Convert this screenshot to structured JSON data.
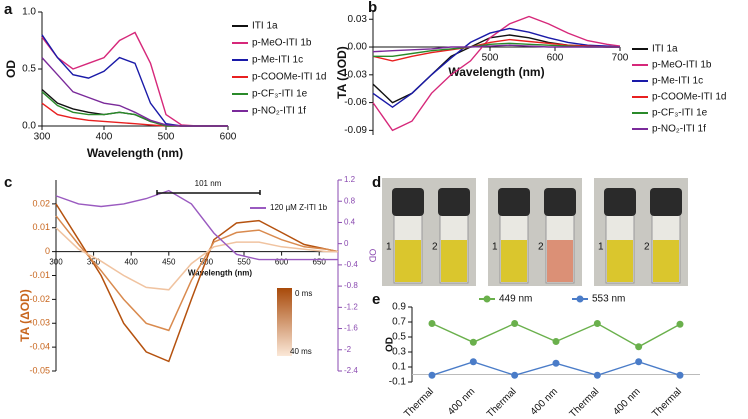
{
  "panel_labels": [
    "a",
    "b",
    "c",
    "d",
    "e"
  ],
  "photos": [
    {
      "labels": [
        "1",
        "2"
      ],
      "liquid": [
        "#d8c21a",
        "#d8c21a"
      ]
    },
    {
      "labels": [
        "1",
        "2"
      ],
      "liquid": [
        "#d8c21a",
        "#d9866a"
      ]
    },
    {
      "labels": [
        "1",
        "2"
      ],
      "liquid": [
        "#d8c21a",
        "#d8c21a"
      ]
    }
  ],
  "chart_data": [
    {
      "type": "line",
      "x": [
        300,
        325,
        350,
        375,
        400,
        425,
        450,
        475,
        500,
        525,
        550,
        575,
        600
      ],
      "xlim": [
        300,
        600
      ],
      "xticks": [
        300,
        400,
        500,
        600
      ],
      "ylim": [
        0,
        1
      ],
      "yticks": [
        {
          "value": 0,
          "label": "0.0"
        },
        0.5,
        {
          "value": 1,
          "label": "1.0"
        }
      ],
      "xlabel": "Wavelength (nm)",
      "ylabel": "OD",
      "series": [
        {
          "name": "ITI 1a",
          "color": "#111111",
          "values": [
            0.32,
            0.2,
            0.15,
            0.12,
            0.1,
            0.12,
            0.1,
            0.04,
            0.01,
            0,
            0,
            0,
            0
          ]
        },
        {
          "name": "p-MeO-ITI 1b",
          "color": "#d6287a",
          "values": [
            0.78,
            0.6,
            0.5,
            0.55,
            0.6,
            0.75,
            0.82,
            0.55,
            0.1,
            0.01,
            0,
            0,
            0
          ]
        },
        {
          "name": "p-Me-ITI 1c",
          "color": "#1a1aa8",
          "values": [
            0.8,
            0.6,
            0.45,
            0.42,
            0.48,
            0.6,
            0.55,
            0.2,
            0.02,
            0,
            0,
            0,
            0
          ]
        },
        {
          "name": "p-COOMe-ITI 1d",
          "color": "#e82020",
          "values": [
            0.2,
            0.1,
            0.07,
            0.05,
            0.04,
            0.03,
            0.02,
            0.01,
            0,
            0,
            0,
            0,
            0
          ]
        },
        {
          "name": "p-CF₃-ITI 1e",
          "color": "#2a8a2a",
          "values": [
            0.3,
            0.18,
            0.12,
            0.1,
            0.1,
            0.12,
            0.1,
            0.04,
            0,
            0,
            0,
            0,
            0
          ]
        },
        {
          "name": "p-NO₂-ITI 1f",
          "color": "#7a2a9a",
          "values": [
            0.6,
            0.45,
            0.3,
            0.25,
            0.2,
            0.18,
            0.12,
            0.05,
            0.01,
            0,
            0,
            0,
            0
          ]
        }
      ]
    },
    {
      "type": "line",
      "x": [
        320,
        350,
        380,
        410,
        440,
        470,
        500,
        530,
        560,
        590,
        620,
        650,
        680,
        700
      ],
      "xlim": [
        320,
        700
      ],
      "xticks": [
        500,
        600,
        700
      ],
      "ylim": [
        -0.095,
        0.04
      ],
      "yticks": [
        0.03,
        {
          "value": 0,
          "label": "0.00"
        },
        -0.03,
        -0.06,
        -0.09
      ],
      "xlabel": "Wavelength (nm)",
      "ylabel": "TA (ΔOD)",
      "series": [
        {
          "name": "ITI 1a",
          "color": "#111111",
          "values": [
            -0.04,
            -0.06,
            -0.05,
            -0.03,
            -0.01,
            0,
            0.01,
            0.013,
            0.01,
            0.005,
            0.002,
            0.001,
            0,
            0
          ]
        },
        {
          "name": "p-MeO-ITI 1b",
          "color": "#d6287a",
          "values": [
            -0.06,
            -0.09,
            -0.08,
            -0.05,
            -0.03,
            -0.015,
            0.01,
            0.025,
            0.033,
            0.025,
            0.015,
            0.007,
            0.003,
            0.001
          ]
        },
        {
          "name": "p-Me-ITI 1c",
          "color": "#1a1aa8",
          "values": [
            -0.05,
            -0.065,
            -0.05,
            -0.03,
            -0.012,
            0.005,
            0.015,
            0.02,
            0.016,
            0.01,
            0.005,
            0.002,
            0.001,
            0
          ]
        },
        {
          "name": "p-COOMe-ITI 1d",
          "color": "#e82020",
          "values": [
            -0.01,
            -0.015,
            -0.01,
            -0.006,
            -0.003,
            0,
            0.005,
            0.008,
            0.006,
            0.004,
            0.002,
            0.001,
            0,
            0
          ]
        },
        {
          "name": "p-CF₃-ITI 1e",
          "color": "#2a8a2a",
          "values": [
            -0.01,
            -0.01,
            -0.007,
            -0.004,
            -0.002,
            0,
            0.003,
            0.004,
            0.003,
            0.002,
            0.001,
            0,
            0,
            0
          ]
        },
        {
          "name": "p-NO₂-ITI 1f",
          "color": "#7a2a9a",
          "values": [
            -0.005,
            -0.004,
            -0.003,
            -0.002,
            0,
            0,
            0.001,
            0.002,
            0.001,
            0,
            0,
            0,
            0,
            0
          ]
        }
      ]
    },
    {
      "type": "line",
      "x": [
        300,
        330,
        360,
        390,
        420,
        450,
        480,
        510,
        540,
        570,
        600,
        630,
        660,
        675
      ],
      "xlim": [
        300,
        675
      ],
      "xticks": [
        300,
        350,
        400,
        450,
        500,
        550,
        600,
        650
      ],
      "ylim": [
        -0.05,
        0.03
      ],
      "yticks": [
        0.02,
        0.01,
        0,
        -0.01,
        -0.02,
        -0.03,
        -0.04,
        -0.05
      ],
      "y2lim": [
        -2.4,
        1.2
      ],
      "y2ticks": [
        1.2,
        0.8,
        0.4,
        0,
        -0.4,
        -0.8,
        -1.2,
        -1.6,
        -2,
        -2.4
      ],
      "xlabel": "Wavelength (nm)",
      "ylabel": "TA (ΔOD)",
      "y2label": "OD",
      "y_color": "#c8661e",
      "y2_color": "#8a4ab0",
      "annotation": "101 nm",
      "colorbar_labels": [
        "0 ms",
        "40 ms"
      ],
      "series": [
        {
          "color": "#b5520f",
          "values": [
            0.02,
            0.005,
            -0.01,
            -0.03,
            -0.042,
            -0.046,
            -0.02,
            0.005,
            0.012,
            0.013,
            0.008,
            0.003,
            0.001,
            0
          ]
        },
        {
          "color": "#d98a4e",
          "values": [
            0.015,
            0.003,
            -0.008,
            -0.02,
            -0.03,
            -0.033,
            -0.012,
            0.004,
            0.008,
            0.009,
            0.005,
            0.002,
            0.001,
            0
          ]
        },
        {
          "color": "#f0c3a0",
          "values": [
            0.01,
            0.001,
            -0.004,
            -0.01,
            -0.015,
            -0.016,
            -0.005,
            0.002,
            0.004,
            0.004,
            0.002,
            0.001,
            0,
            0
          ]
        },
        {
          "name": "120 µM Z-ITI 1b",
          "color": "#9a5ac0",
          "axis": "y2",
          "values": [
            0.9,
            0.75,
            0.7,
            0.75,
            0.85,
            1.0,
            0.75,
            0.2,
            -0.2,
            -0.3,
            -0.3,
            -0.3,
            -0.3,
            -0.3
          ]
        }
      ]
    },
    {
      "type": "line",
      "categories": [
        "Thermal",
        "400 nm",
        "Thermal",
        "400 nm",
        "Thermal",
        "400 nm",
        "Thermal"
      ],
      "ylim": [
        -0.1,
        0.9
      ],
      "yticks": [
        -0.1,
        0.1,
        0.3,
        0.5,
        0.7,
        0.9
      ],
      "ylabel": "OD",
      "markers": true,
      "series": [
        {
          "name": "449 nm",
          "color": "#6ab04c",
          "values": [
            0.68,
            0.43,
            0.68,
            0.44,
            0.68,
            0.37,
            0.67
          ]
        },
        {
          "name": "553 nm",
          "color": "#4a7cc8",
          "values": [
            -0.01,
            0.17,
            -0.01,
            0.15,
            -0.01,
            0.17,
            -0.01
          ]
        }
      ]
    }
  ]
}
